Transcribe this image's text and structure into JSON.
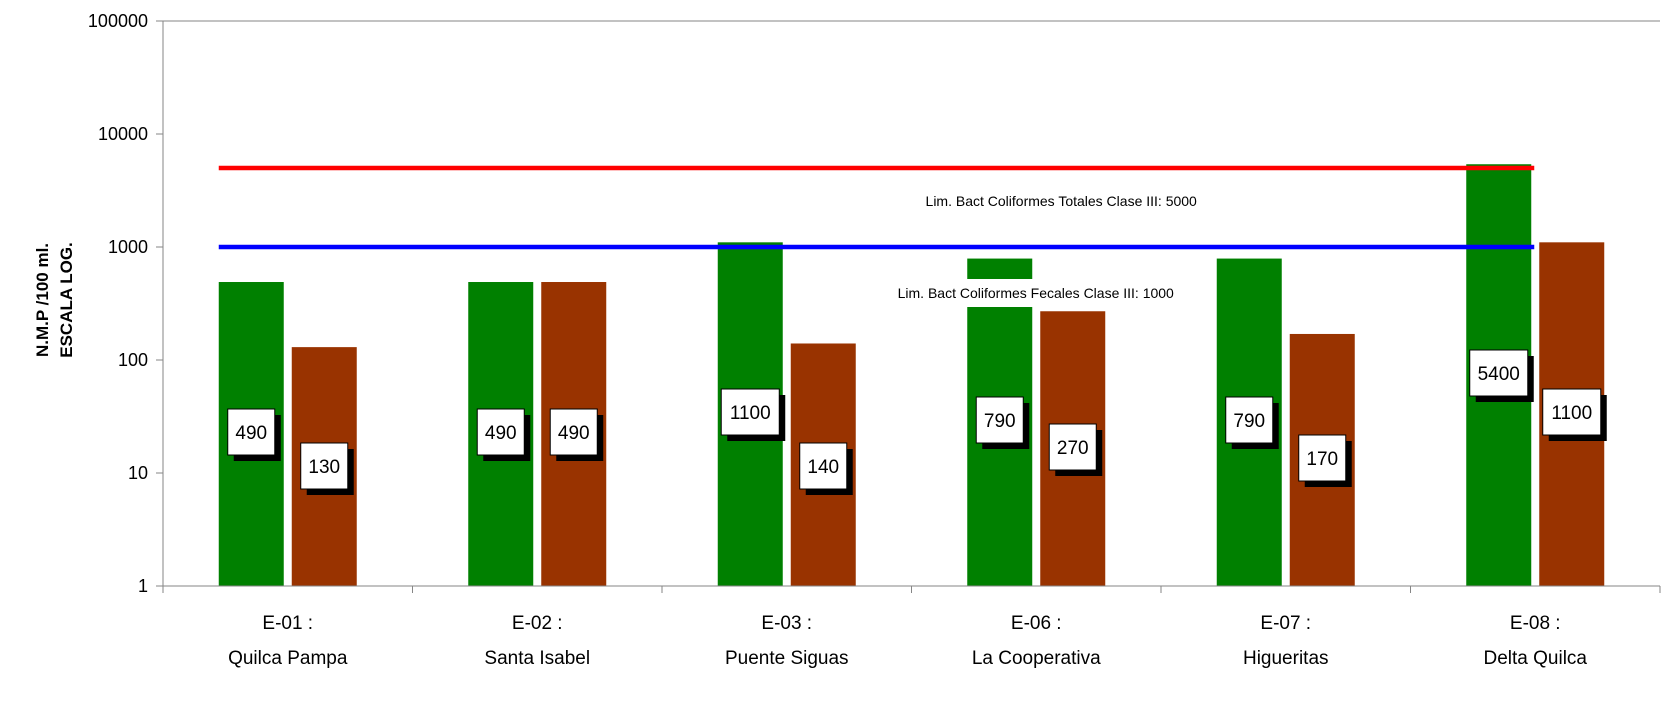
{
  "chart_data": {
    "type": "bar",
    "scale": "log",
    "ylim": [
      1,
      100000
    ],
    "yticks": [
      "1",
      "10",
      "100",
      "1000",
      "10000",
      "100000"
    ],
    "ylabel_line1": "N.M.P /100 ml.",
    "ylabel_line2": "ESCALA LOG.",
    "categories": [
      {
        "code": "E-01 :",
        "name": "Quilca Pampa"
      },
      {
        "code": "E-02 :",
        "name": "Santa Isabel"
      },
      {
        "code": "E-03 :",
        "name": "Puente Siguas"
      },
      {
        "code": "E-06 :",
        "name": "La Cooperativa"
      },
      {
        "code": "E-07 :",
        "name": "Higueritas"
      },
      {
        "code": "E-08 :",
        "name": "Delta Quilca"
      }
    ],
    "series": [
      {
        "color": "#008000",
        "values": [
          490,
          490,
          1100,
          790,
          790,
          5400
        ]
      },
      {
        "color": "#993300",
        "values": [
          130,
          490,
          140,
          270,
          170,
          1100
        ]
      }
    ],
    "data_labels": [
      [
        "490",
        "490",
        "1100",
        "790",
        "790",
        "5400"
      ],
      [
        "130",
        "490",
        "140",
        "270",
        "170",
        "1100"
      ]
    ],
    "reference_lines": [
      {
        "value": 5000,
        "color": "#ff0000",
        "label": "Lim. Bact Coliformes Totales Clase III: 5000"
      },
      {
        "value": 1000,
        "color": "#0000ff",
        "label": "Lim. Bact Coliformes Fecales Clase III: 1000"
      }
    ],
    "grid": false,
    "legend": "none"
  }
}
